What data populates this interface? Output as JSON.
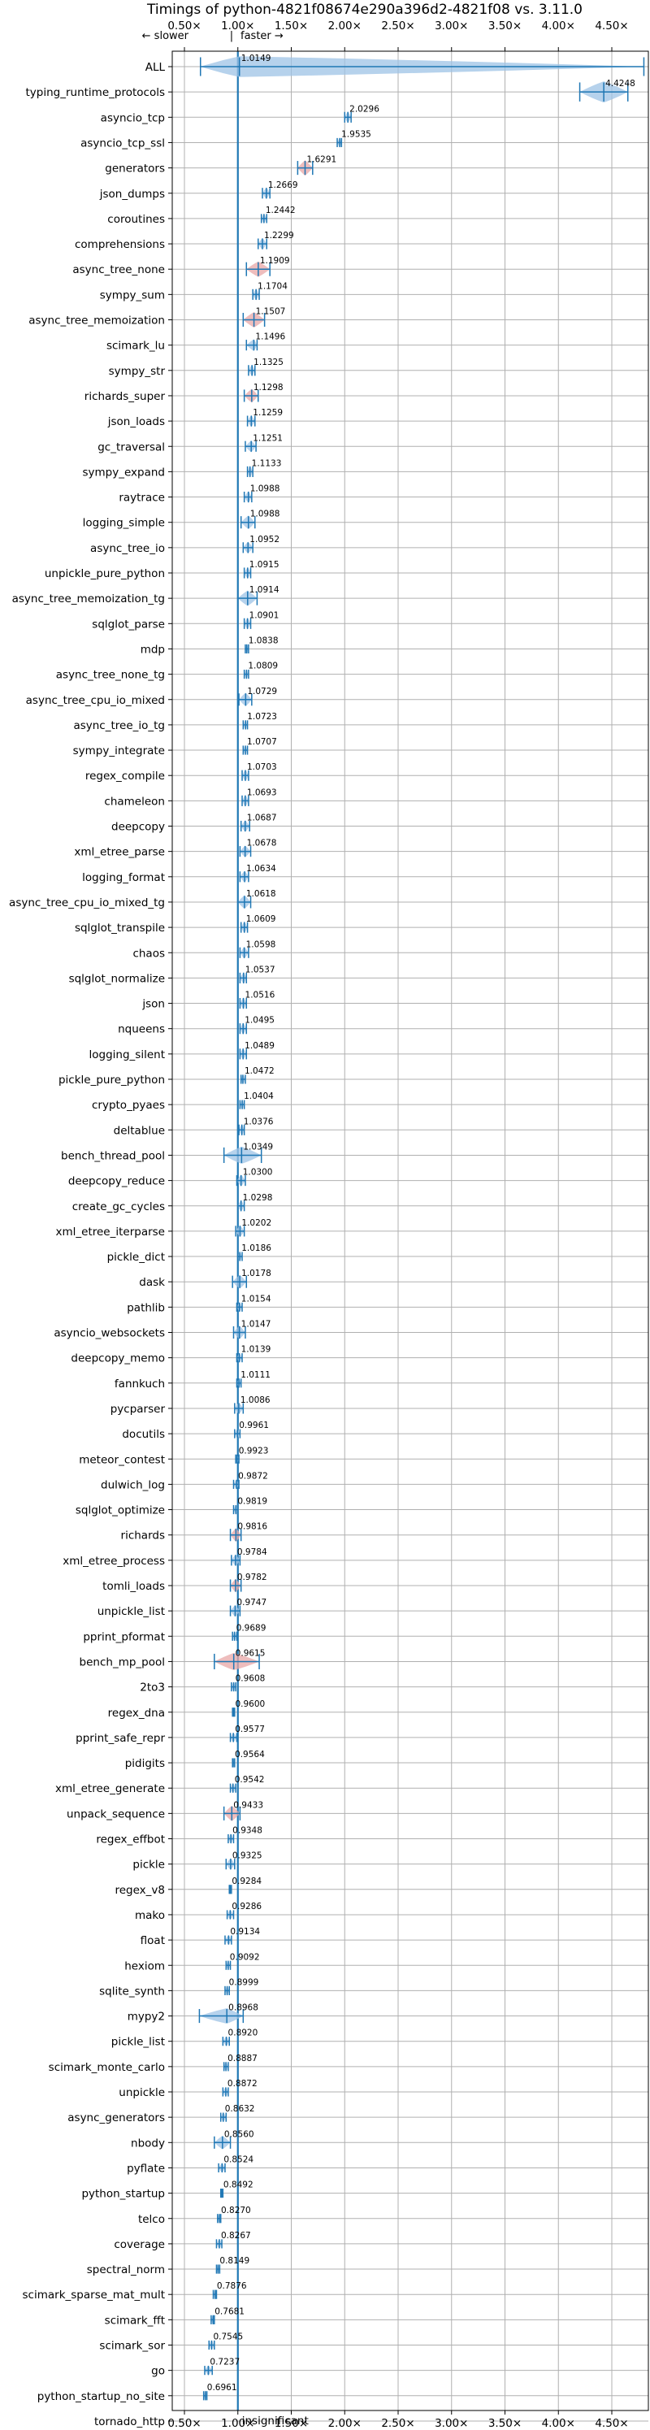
{
  "chart_data": {
    "type": "violin",
    "title": "Timings of python-4821f08674e290a396d2-4821f08 vs. 3.11.0",
    "direction_labels": {
      "slower": "← slower",
      "separator": "|",
      "faster": "faster →"
    },
    "x_ticks": [
      {
        "value": 0.5,
        "label": "0.50×"
      },
      {
        "value": 1.0,
        "label": "1.00×"
      },
      {
        "value": 1.5,
        "label": "1.50×"
      },
      {
        "value": 2.0,
        "label": "2.00×"
      },
      {
        "value": 2.5,
        "label": "2.50×"
      },
      {
        "value": 3.0,
        "label": "3.00×"
      },
      {
        "value": 3.5,
        "label": "3.50×"
      },
      {
        "value": 4.0,
        "label": "4.00×"
      },
      {
        "value": 4.5,
        "label": "4.50×"
      }
    ],
    "xlim": [
      0.4,
      4.75
    ],
    "grid": true,
    "reference_line": 1.0,
    "colors": {
      "violin": "#9dc3e6",
      "accent": "#1f77b4",
      "slower_highlight": "#e8a7a7",
      "reference": "#1f77b4"
    },
    "benchmarks": [
      {
        "name": "ALL",
        "value": "1.0149",
        "mean": 1.0149,
        "min": 0.65,
        "max": 4.8,
        "spread": 0.08
      },
      {
        "name": "typing_runtime_protocols",
        "value": "4.4248",
        "mean": 4.4248,
        "min": 4.2,
        "max": 4.65,
        "spread": 0.15
      },
      {
        "name": "asyncio_tcp",
        "value": "2.0296",
        "mean": 2.0296,
        "min": 2.0,
        "max": 2.06,
        "spread": 0.03
      },
      {
        "name": "asyncio_tcp_ssl",
        "value": "1.9535",
        "mean": 1.9535,
        "min": 1.93,
        "max": 1.97,
        "spread": 0.02
      },
      {
        "name": "generators",
        "value": "1.6291",
        "mean": 1.6291,
        "min": 1.56,
        "max": 1.7,
        "spread": 0.05
      },
      {
        "name": "json_dumps",
        "value": "1.2669",
        "mean": 1.2669,
        "min": 1.23,
        "max": 1.3,
        "spread": 0.03
      },
      {
        "name": "coroutines",
        "value": "1.2442",
        "mean": 1.2442,
        "min": 1.22,
        "max": 1.27,
        "spread": 0.02
      },
      {
        "name": "comprehensions",
        "value": "1.2299",
        "mean": 1.2299,
        "min": 1.19,
        "max": 1.27,
        "spread": 0.03
      },
      {
        "name": "async_tree_none",
        "value": "1.1909",
        "mean": 1.1909,
        "min": 1.08,
        "max": 1.3,
        "spread": 0.05
      },
      {
        "name": "sympy_sum",
        "value": "1.1704",
        "mean": 1.1704,
        "min": 1.14,
        "max": 1.2,
        "spread": 0.03
      },
      {
        "name": "async_tree_memoization",
        "value": "1.1507",
        "mean": 1.1507,
        "min": 1.05,
        "max": 1.25,
        "spread": 0.05
      },
      {
        "name": "scimark_lu",
        "value": "1.1496",
        "mean": 1.1496,
        "min": 1.08,
        "max": 1.18,
        "spread": 0.03
      },
      {
        "name": "sympy_str",
        "value": "1.1325",
        "mean": 1.1325,
        "min": 1.1,
        "max": 1.16,
        "spread": 0.03
      },
      {
        "name": "richards_super",
        "value": "1.1298",
        "mean": 1.1298,
        "min": 1.06,
        "max": 1.19,
        "spread": 0.04
      },
      {
        "name": "json_loads",
        "value": "1.1259",
        "mean": 1.1259,
        "min": 1.09,
        "max": 1.16,
        "spread": 0.03
      },
      {
        "name": "gc_traversal",
        "value": "1.1251",
        "mean": 1.1251,
        "min": 1.07,
        "max": 1.17,
        "spread": 0.03
      },
      {
        "name": "sympy_expand",
        "value": "1.1133",
        "mean": 1.1133,
        "min": 1.09,
        "max": 1.14,
        "spread": 0.03
      },
      {
        "name": "raytrace",
        "value": "1.0988",
        "mean": 1.0988,
        "min": 1.06,
        "max": 1.13,
        "spread": 0.03
      },
      {
        "name": "logging_simple",
        "value": "1.0988",
        "mean": 1.0988,
        "min": 1.03,
        "max": 1.16,
        "spread": 0.04
      },
      {
        "name": "async_tree_io",
        "value": "1.0952",
        "mean": 1.0952,
        "min": 1.05,
        "max": 1.14,
        "spread": 0.03
      },
      {
        "name": "unpickle_pure_python",
        "value": "1.0915",
        "mean": 1.0915,
        "min": 1.06,
        "max": 1.12,
        "spread": 0.03
      },
      {
        "name": "async_tree_memoization_tg",
        "value": "1.0914",
        "mean": 1.0914,
        "min": 1.0,
        "max": 1.18,
        "spread": 0.05
      },
      {
        "name": "sqlglot_parse",
        "value": "1.0901",
        "mean": 1.0901,
        "min": 1.06,
        "max": 1.12,
        "spread": 0.03
      },
      {
        "name": "mdp",
        "value": "1.0838",
        "mean": 1.0838,
        "min": 1.07,
        "max": 1.1,
        "spread": 0.02
      },
      {
        "name": "async_tree_none_tg",
        "value": "1.0809",
        "mean": 1.0809,
        "min": 1.06,
        "max": 1.1,
        "spread": 0.02
      },
      {
        "name": "async_tree_cpu_io_mixed",
        "value": "1.0729",
        "mean": 1.0729,
        "min": 1.01,
        "max": 1.13,
        "spread": 0.04
      },
      {
        "name": "async_tree_io_tg",
        "value": "1.0723",
        "mean": 1.0723,
        "min": 1.05,
        "max": 1.09,
        "spread": 0.02
      },
      {
        "name": "sympy_integrate",
        "value": "1.0707",
        "mean": 1.0707,
        "min": 1.05,
        "max": 1.09,
        "spread": 0.02
      },
      {
        "name": "regex_compile",
        "value": "1.0703",
        "mean": 1.0703,
        "min": 1.04,
        "max": 1.1,
        "spread": 0.03
      },
      {
        "name": "chameleon",
        "value": "1.0693",
        "mean": 1.0693,
        "min": 1.04,
        "max": 1.1,
        "spread": 0.03
      },
      {
        "name": "deepcopy",
        "value": "1.0687",
        "mean": 1.0687,
        "min": 1.03,
        "max": 1.11,
        "spread": 0.03
      },
      {
        "name": "xml_etree_parse",
        "value": "1.0678",
        "mean": 1.0678,
        "min": 1.02,
        "max": 1.12,
        "spread": 0.03
      },
      {
        "name": "logging_format",
        "value": "1.0634",
        "mean": 1.0634,
        "min": 1.02,
        "max": 1.1,
        "spread": 0.03
      },
      {
        "name": "async_tree_cpu_io_mixed_tg",
        "value": "1.0618",
        "mean": 1.0618,
        "min": 1.0,
        "max": 1.12,
        "spread": 0.04
      },
      {
        "name": "sqlglot_transpile",
        "value": "1.0609",
        "mean": 1.0609,
        "min": 1.03,
        "max": 1.09,
        "spread": 0.03
      },
      {
        "name": "chaos",
        "value": "1.0598",
        "mean": 1.0598,
        "min": 1.02,
        "max": 1.1,
        "spread": 0.03
      },
      {
        "name": "sqlglot_normalize",
        "value": "1.0537",
        "mean": 1.0537,
        "min": 1.02,
        "max": 1.08,
        "spread": 0.03
      },
      {
        "name": "json",
        "value": "1.0516",
        "mean": 1.0516,
        "min": 1.02,
        "max": 1.08,
        "spread": 0.03
      },
      {
        "name": "nqueens",
        "value": "1.0495",
        "mean": 1.0495,
        "min": 1.02,
        "max": 1.08,
        "spread": 0.03
      },
      {
        "name": "logging_silent",
        "value": "1.0489",
        "mean": 1.0489,
        "min": 1.02,
        "max": 1.08,
        "spread": 0.03
      },
      {
        "name": "pickle_pure_python",
        "value": "1.0472",
        "mean": 1.0472,
        "min": 1.03,
        "max": 1.07,
        "spread": 0.02
      },
      {
        "name": "crypto_pyaes",
        "value": "1.0404",
        "mean": 1.0404,
        "min": 1.02,
        "max": 1.06,
        "spread": 0.02
      },
      {
        "name": "deltablue",
        "value": "1.0376",
        "mean": 1.0376,
        "min": 1.01,
        "max": 1.06,
        "spread": 0.03
      },
      {
        "name": "bench_thread_pool",
        "value": "1.0349",
        "mean": 1.0349,
        "min": 0.87,
        "max": 1.22,
        "spread": 0.06
      },
      {
        "name": "deepcopy_reduce",
        "value": "1.0300",
        "mean": 1.03,
        "min": 0.99,
        "max": 1.07,
        "spread": 0.03
      },
      {
        "name": "create_gc_cycles",
        "value": "1.0298",
        "mean": 1.0298,
        "min": 1.0,
        "max": 1.06,
        "spread": 0.03
      },
      {
        "name": "xml_etree_iterparse",
        "value": "1.0202",
        "mean": 1.0202,
        "min": 0.98,
        "max": 1.06,
        "spread": 0.03
      },
      {
        "name": "pickle_dict",
        "value": "1.0186",
        "mean": 1.0186,
        "min": 1.0,
        "max": 1.04,
        "spread": 0.02
      },
      {
        "name": "dask",
        "value": "1.0178",
        "mean": 1.0178,
        "min": 0.95,
        "max": 1.08,
        "spread": 0.04
      },
      {
        "name": "pathlib",
        "value": "1.0154",
        "mean": 1.0154,
        "min": 0.99,
        "max": 1.04,
        "spread": 0.02
      },
      {
        "name": "asyncio_websockets",
        "value": "1.0147",
        "mean": 1.0147,
        "min": 0.96,
        "max": 1.07,
        "spread": 0.04
      },
      {
        "name": "deepcopy_memo",
        "value": "1.0139",
        "mean": 1.0139,
        "min": 0.99,
        "max": 1.04,
        "spread": 0.02
      },
      {
        "name": "fannkuch",
        "value": "1.0111",
        "mean": 1.0111,
        "min": 0.99,
        "max": 1.03,
        "spread": 0.02
      },
      {
        "name": "pycparser",
        "value": "1.0086",
        "mean": 1.0086,
        "min": 0.97,
        "max": 1.05,
        "spread": 0.03
      },
      {
        "name": "docutils",
        "value": "0.9961",
        "mean": 0.9961,
        "min": 0.97,
        "max": 1.02,
        "spread": 0.02
      },
      {
        "name": "meteor_contest",
        "value": "0.9923",
        "mean": 0.9923,
        "min": 0.98,
        "max": 1.01,
        "spread": 0.02
      },
      {
        "name": "dulwich_log",
        "value": "0.9872",
        "mean": 0.9872,
        "min": 0.96,
        "max": 1.01,
        "spread": 0.02
      },
      {
        "name": "sqlglot_optimize",
        "value": "0.9819",
        "mean": 0.9819,
        "min": 0.96,
        "max": 1.0,
        "spread": 0.02
      },
      {
        "name": "richards",
        "value": "0.9816",
        "mean": 0.9816,
        "min": 0.93,
        "max": 1.03,
        "spread": 0.04
      },
      {
        "name": "xml_etree_process",
        "value": "0.9784",
        "mean": 0.9784,
        "min": 0.94,
        "max": 1.02,
        "spread": 0.03
      },
      {
        "name": "tomli_loads",
        "value": "0.9782",
        "mean": 0.9782,
        "min": 0.93,
        "max": 1.03,
        "spread": 0.04
      },
      {
        "name": "unpickle_list",
        "value": "0.9747",
        "mean": 0.9747,
        "min": 0.93,
        "max": 1.02,
        "spread": 0.03
      },
      {
        "name": "pprint_pformat",
        "value": "0.9689",
        "mean": 0.9689,
        "min": 0.95,
        "max": 0.99,
        "spread": 0.02
      },
      {
        "name": "bench_mp_pool",
        "value": "0.9615",
        "mean": 0.9615,
        "min": 0.78,
        "max": 1.2,
        "spread": 0.06
      },
      {
        "name": "2to3",
        "value": "0.9608",
        "mean": 0.9608,
        "min": 0.94,
        "max": 0.98,
        "spread": 0.02
      },
      {
        "name": "regex_dna",
        "value": "0.9600",
        "mean": 0.96,
        "min": 0.95,
        "max": 0.97,
        "spread": 0.02
      },
      {
        "name": "pprint_safe_repr",
        "value": "0.9577",
        "mean": 0.9577,
        "min": 0.93,
        "max": 0.99,
        "spread": 0.02
      },
      {
        "name": "pidigits",
        "value": "0.9564",
        "mean": 0.9564,
        "min": 0.95,
        "max": 0.97,
        "spread": 0.02
      },
      {
        "name": "xml_etree_generate",
        "value": "0.9542",
        "mean": 0.9542,
        "min": 0.93,
        "max": 0.98,
        "spread": 0.02
      },
      {
        "name": "unpack_sequence",
        "value": "0.9433",
        "mean": 0.9433,
        "min": 0.87,
        "max": 1.02,
        "spread": 0.05
      },
      {
        "name": "regex_effbot",
        "value": "0.9348",
        "mean": 0.9348,
        "min": 0.91,
        "max": 0.96,
        "spread": 0.02
      },
      {
        "name": "pickle",
        "value": "0.9325",
        "mean": 0.9325,
        "min": 0.89,
        "max": 0.97,
        "spread": 0.03
      },
      {
        "name": "regex_v8",
        "value": "0.9284",
        "mean": 0.9284,
        "min": 0.92,
        "max": 0.94,
        "spread": 0.02
      },
      {
        "name": "mako",
        "value": "0.9286",
        "mean": 0.9286,
        "min": 0.9,
        "max": 0.96,
        "spread": 0.02
      },
      {
        "name": "float",
        "value": "0.9134",
        "mean": 0.9134,
        "min": 0.88,
        "max": 0.94,
        "spread": 0.02
      },
      {
        "name": "hexiom",
        "value": "0.9092",
        "mean": 0.9092,
        "min": 0.89,
        "max": 0.93,
        "spread": 0.02
      },
      {
        "name": "sqlite_synth",
        "value": "0.8999",
        "mean": 0.8999,
        "min": 0.88,
        "max": 0.92,
        "spread": 0.02
      },
      {
        "name": "mypy2",
        "value": "0.8968",
        "mean": 0.8968,
        "min": 0.64,
        "max": 1.05,
        "spread": 0.05
      },
      {
        "name": "pickle_list",
        "value": "0.8920",
        "mean": 0.892,
        "min": 0.86,
        "max": 0.92,
        "spread": 0.02
      },
      {
        "name": "scimark_monte_carlo",
        "value": "0.8887",
        "mean": 0.8887,
        "min": 0.87,
        "max": 0.91,
        "spread": 0.02
      },
      {
        "name": "unpickle",
        "value": "0.8872",
        "mean": 0.8872,
        "min": 0.86,
        "max": 0.91,
        "spread": 0.02
      },
      {
        "name": "async_generators",
        "value": "0.8632",
        "mean": 0.8632,
        "min": 0.84,
        "max": 0.89,
        "spread": 0.02
      },
      {
        "name": "nbody",
        "value": "0.8560",
        "mean": 0.856,
        "min": 0.78,
        "max": 0.93,
        "spread": 0.04
      },
      {
        "name": "pyflate",
        "value": "0.8524",
        "mean": 0.8524,
        "min": 0.82,
        "max": 0.88,
        "spread": 0.02
      },
      {
        "name": "python_startup",
        "value": "0.8492",
        "mean": 0.8492,
        "min": 0.84,
        "max": 0.86,
        "spread": 0.02
      },
      {
        "name": "telco",
        "value": "0.8270",
        "mean": 0.827,
        "min": 0.81,
        "max": 0.84,
        "spread": 0.02
      },
      {
        "name": "coverage",
        "value": "0.8267",
        "mean": 0.8267,
        "min": 0.8,
        "max": 0.85,
        "spread": 0.02
      },
      {
        "name": "spectral_norm",
        "value": "0.8149",
        "mean": 0.8149,
        "min": 0.8,
        "max": 0.83,
        "spread": 0.02
      },
      {
        "name": "scimark_sparse_mat_mult",
        "value": "0.7876",
        "mean": 0.7876,
        "min": 0.77,
        "max": 0.8,
        "spread": 0.02
      },
      {
        "name": "scimark_fft",
        "value": "0.7681",
        "mean": 0.7681,
        "min": 0.75,
        "max": 0.78,
        "spread": 0.02
      },
      {
        "name": "scimark_sor",
        "value": "0.7545",
        "mean": 0.7545,
        "min": 0.73,
        "max": 0.78,
        "spread": 0.02
      },
      {
        "name": "go",
        "value": "0.7237",
        "mean": 0.7237,
        "min": 0.69,
        "max": 0.76,
        "spread": 0.02
      },
      {
        "name": "python_startup_no_site",
        "value": "0.6961",
        "mean": 0.6961,
        "min": 0.68,
        "max": 0.71,
        "spread": 0.02
      },
      {
        "name": "tornado_http",
        "value": "insignificant",
        "mean": null,
        "min": null,
        "max": null,
        "spread": 0
      }
    ]
  }
}
